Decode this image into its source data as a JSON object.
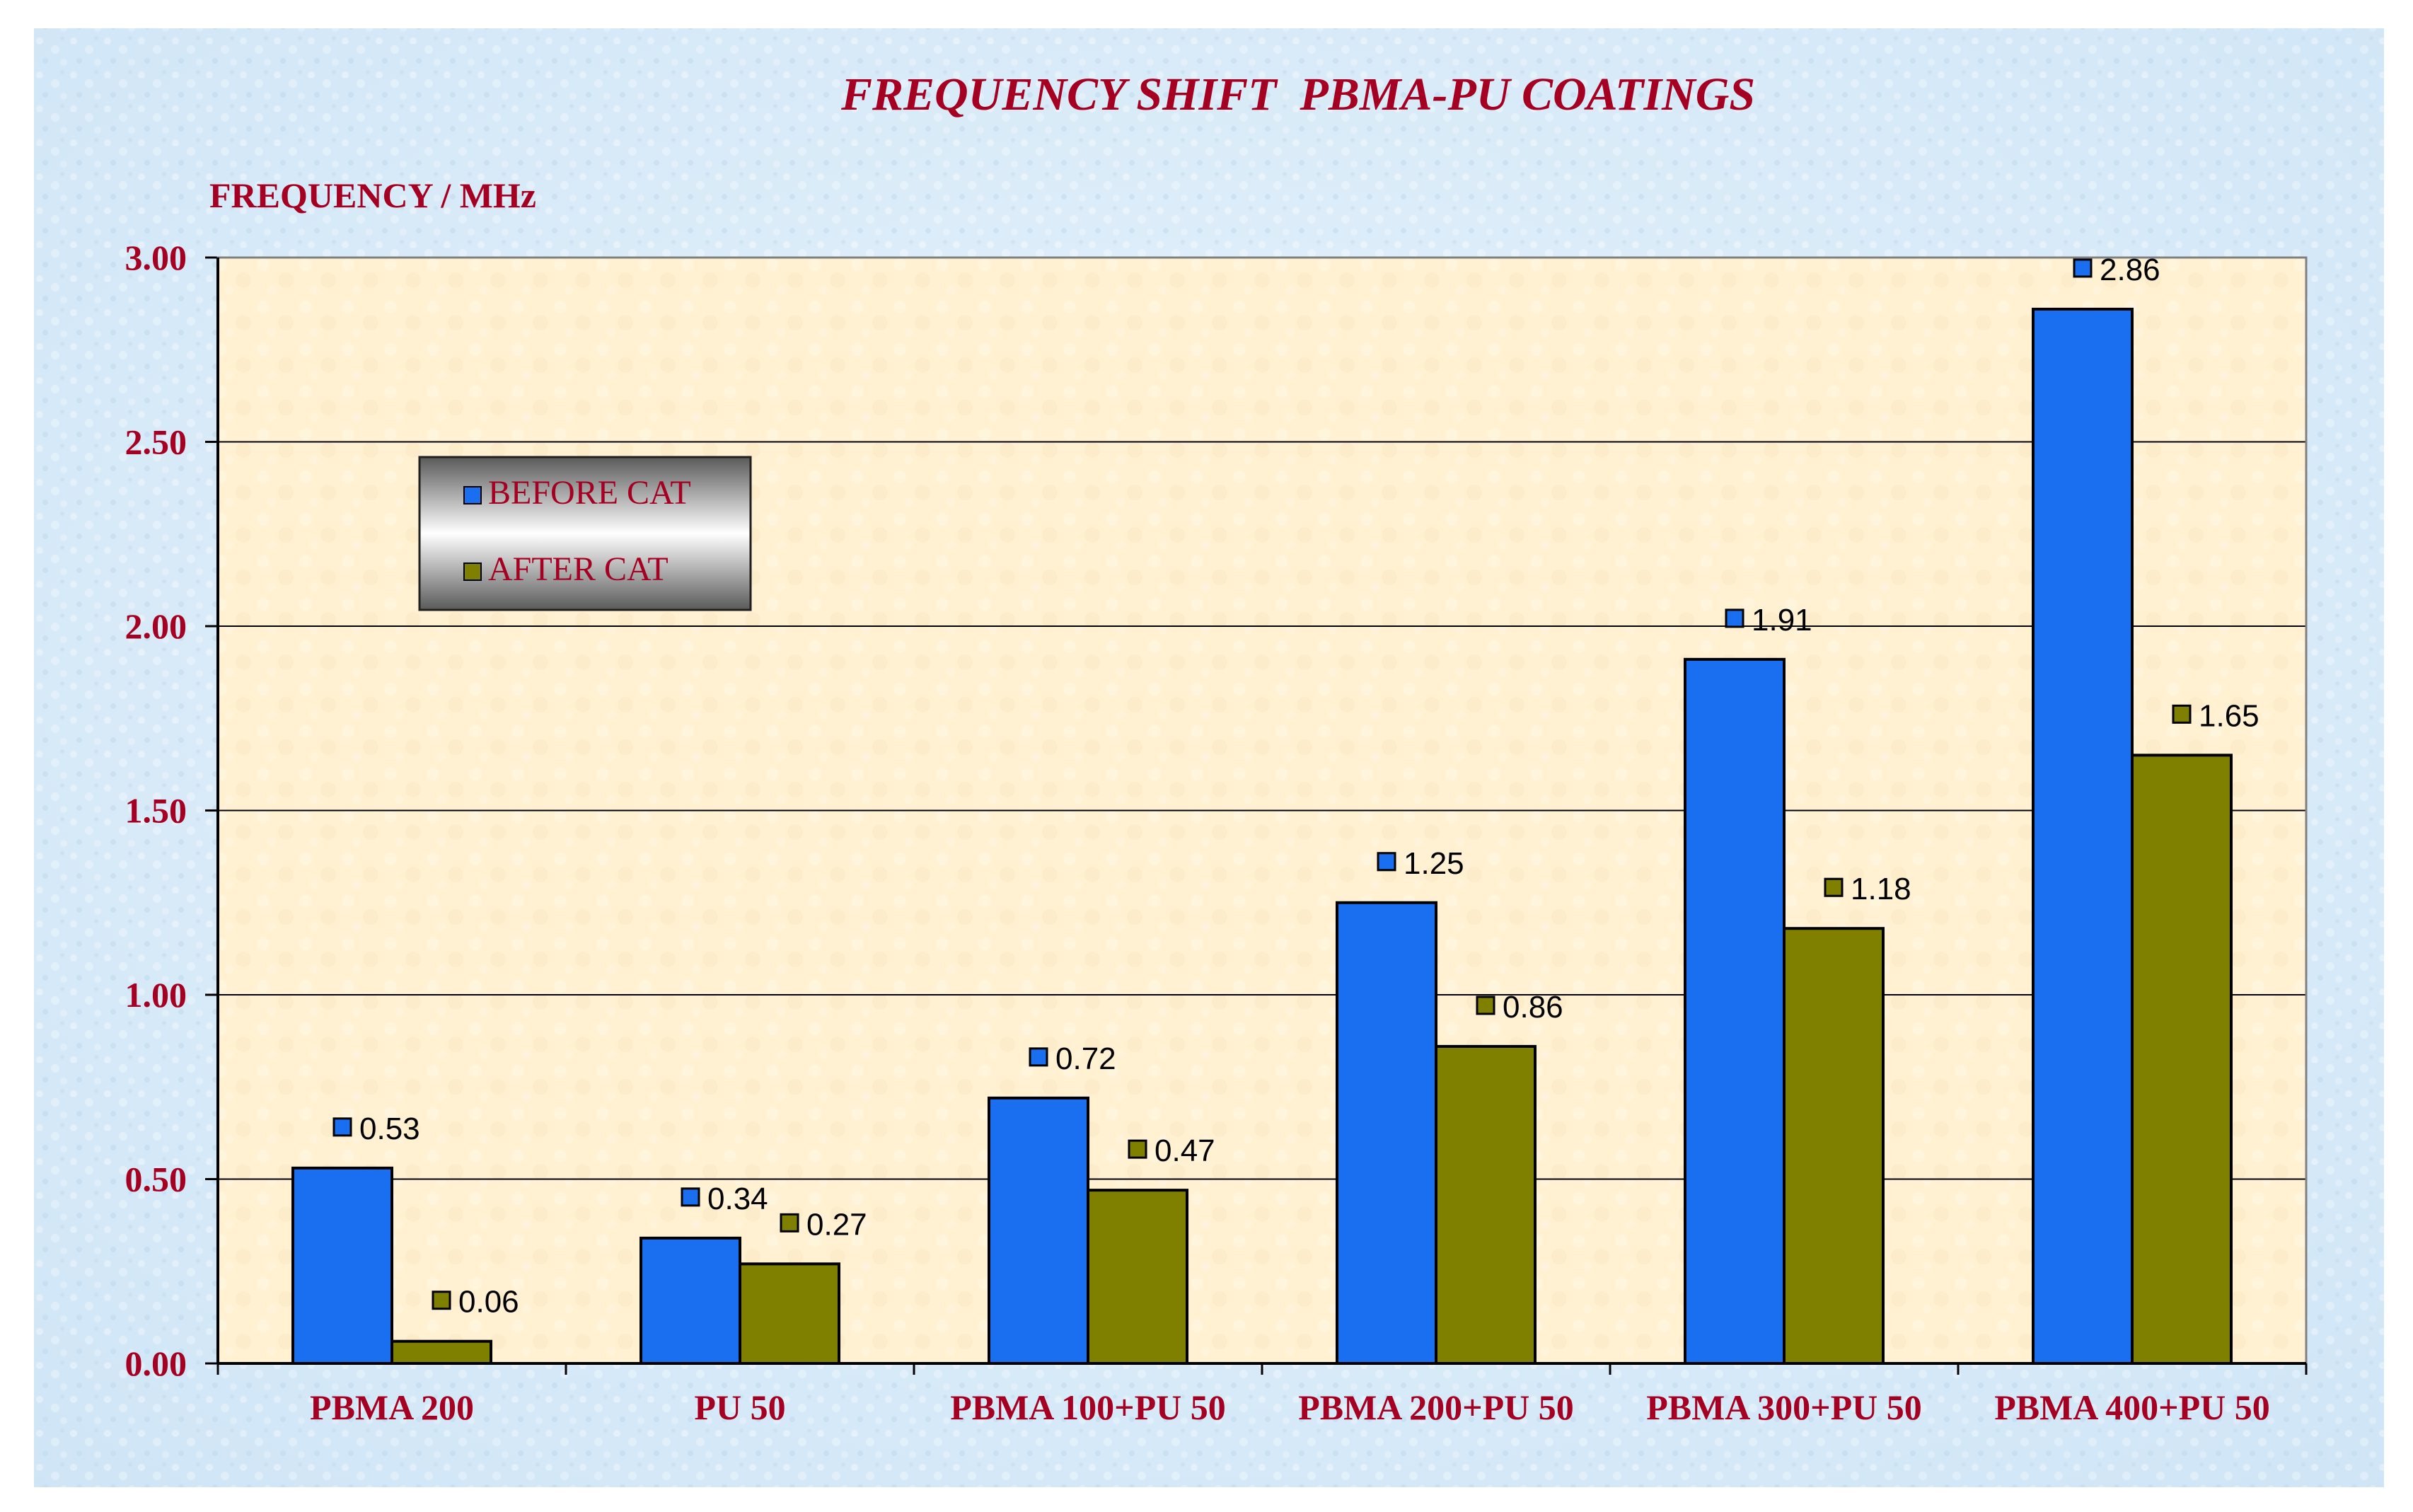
{
  "chart_data": {
    "type": "bar",
    "title": "FREQUENCY SHIFT  PBMA-PU COATINGS",
    "ylabel": "FREQUENCY / MHz",
    "xlabel": "",
    "categories": [
      "PBMA 200",
      "PU  50",
      "PBMA 100+PU 50",
      "PBMA 200+PU 50",
      "PBMA 300+PU 50",
      "PBMA 400+PU 50"
    ],
    "series": [
      {
        "name": "BEFORE CAT",
        "color": "#1a6ff0",
        "values": [
          0.53,
          0.34,
          0.72,
          1.25,
          1.91,
          2.86
        ],
        "labels": [
          "0.53",
          "0.34",
          "0.72",
          "1.25",
          "1.91",
          "2.86"
        ]
      },
      {
        "name": "AFTER CAT",
        "color": "#7f7f00",
        "values": [
          0.06,
          0.27,
          0.47,
          0.86,
          1.18,
          1.65
        ],
        "labels": [
          "0.06",
          "0.27",
          "0.47",
          "0.86",
          "1.18",
          "1.65"
        ]
      }
    ],
    "ylim": [
      0,
      3
    ],
    "yticks": [
      0,
      0.5,
      1,
      1.5,
      2,
      2.5,
      3
    ],
    "ytick_labels": [
      "0.00",
      "0.50",
      "1.00",
      "1.50",
      "2.00",
      "2.50",
      "3.00"
    ],
    "grid": true,
    "legend": "upper-left",
    "colors": {
      "title": "#a50021",
      "axis_text": "#a50021",
      "plot_bg": "#fff1d2",
      "frame_bg": "#d6e9f7"
    }
  }
}
